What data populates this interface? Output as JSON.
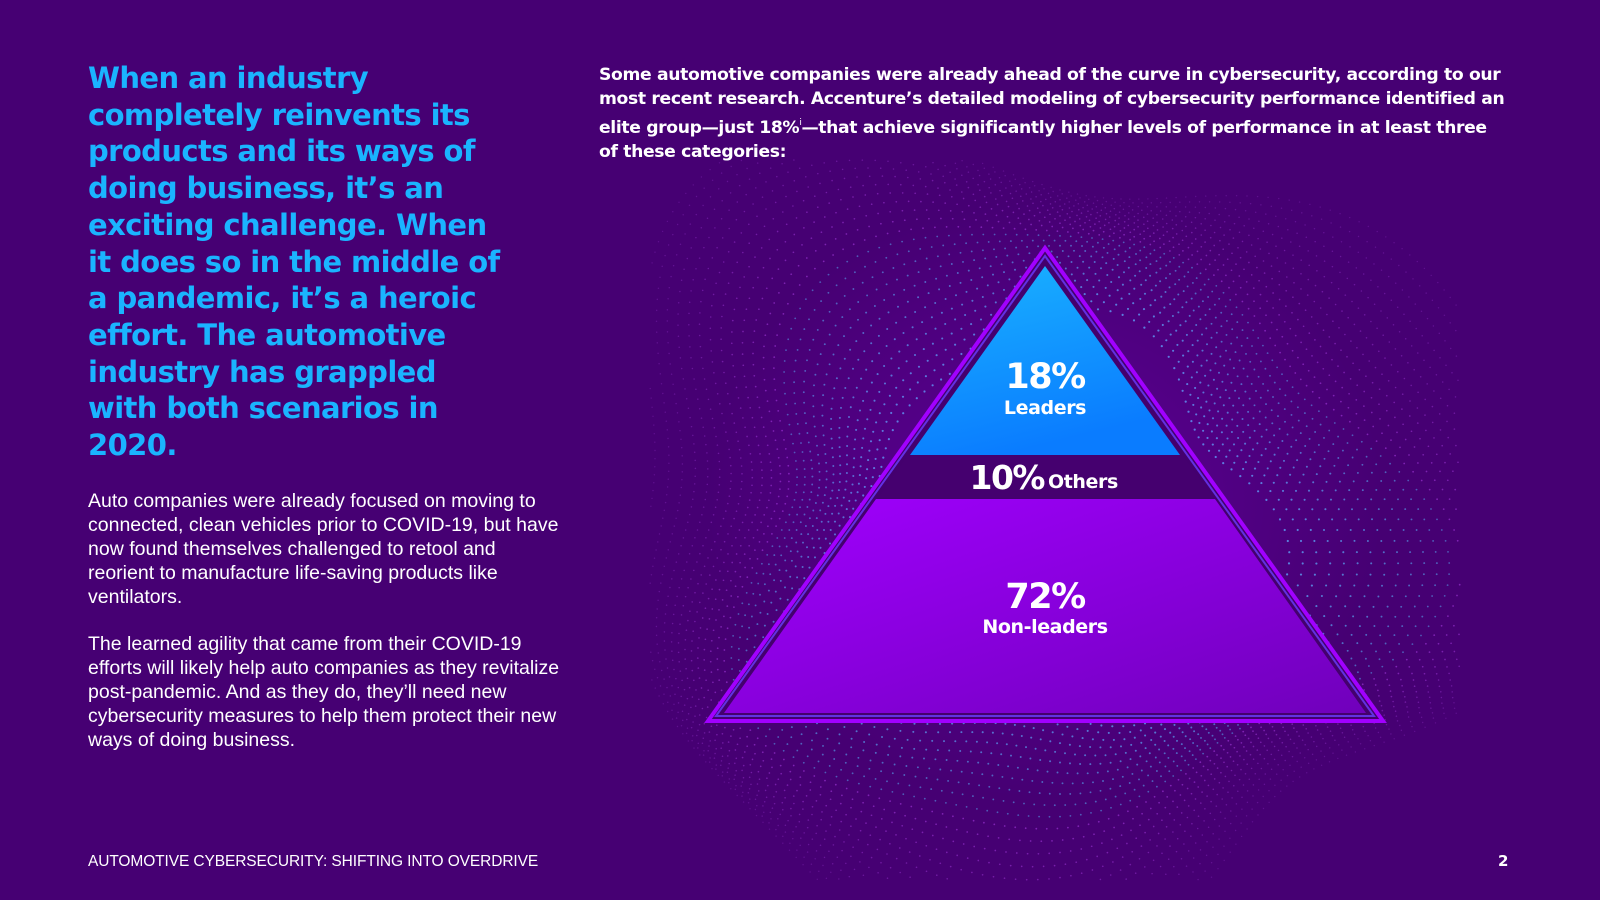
{
  "headline": "When an industry completely reinvents its products and its ways of doing business, it’s an exciting challenge. When it does so in the middle of a pandemic, it’s a heroic effort. The automotive industry has grappled with both scenarios in 2020.",
  "paragraphs": [
    "Auto companies were already focused on moving to connected, clean vehicles prior to COVID-19, but have now found themselves challenged to retool and reorient to manufacture life-saving products like ventilators.",
    "The learned agility that came from their COVID-19 efforts will likely help auto companies as they revitalize post-pandemic. And as they do, they’ll need new cybersecurity measures to help them protect their new ways of doing business."
  ],
  "intro": {
    "before_sup": "Some automotive companies were already ahead of the curve in cybersecurity, according to our most recent research. Accenture’s detailed modeling of cybersecurity performance identified an elite group—just 18%",
    "sup": "i",
    "after_sup": "—that achieve significantly higher levels of performance in at least three of these categories:"
  },
  "pyramid": {
    "leaders": {
      "value": "18%",
      "label": "Leaders"
    },
    "others": {
      "value": "10%",
      "label": "Others"
    },
    "non_leaders": {
      "value": "72%",
      "label": "Non-leaders"
    }
  },
  "footer": {
    "title": "AUTOMOTIVE CYBERSECURITY: SHIFTING INTO OVERDRIVE",
    "page_number": "2"
  },
  "colors": {
    "background": "#460073",
    "headline": "#1ab4ff",
    "leaders_top": "#1ab4ff",
    "leaders_bottom": "#0a7cff",
    "non_leaders_top": "#a100ff",
    "non_leaders_bottom": "#7500c0",
    "outline": "#a100ff"
  }
}
